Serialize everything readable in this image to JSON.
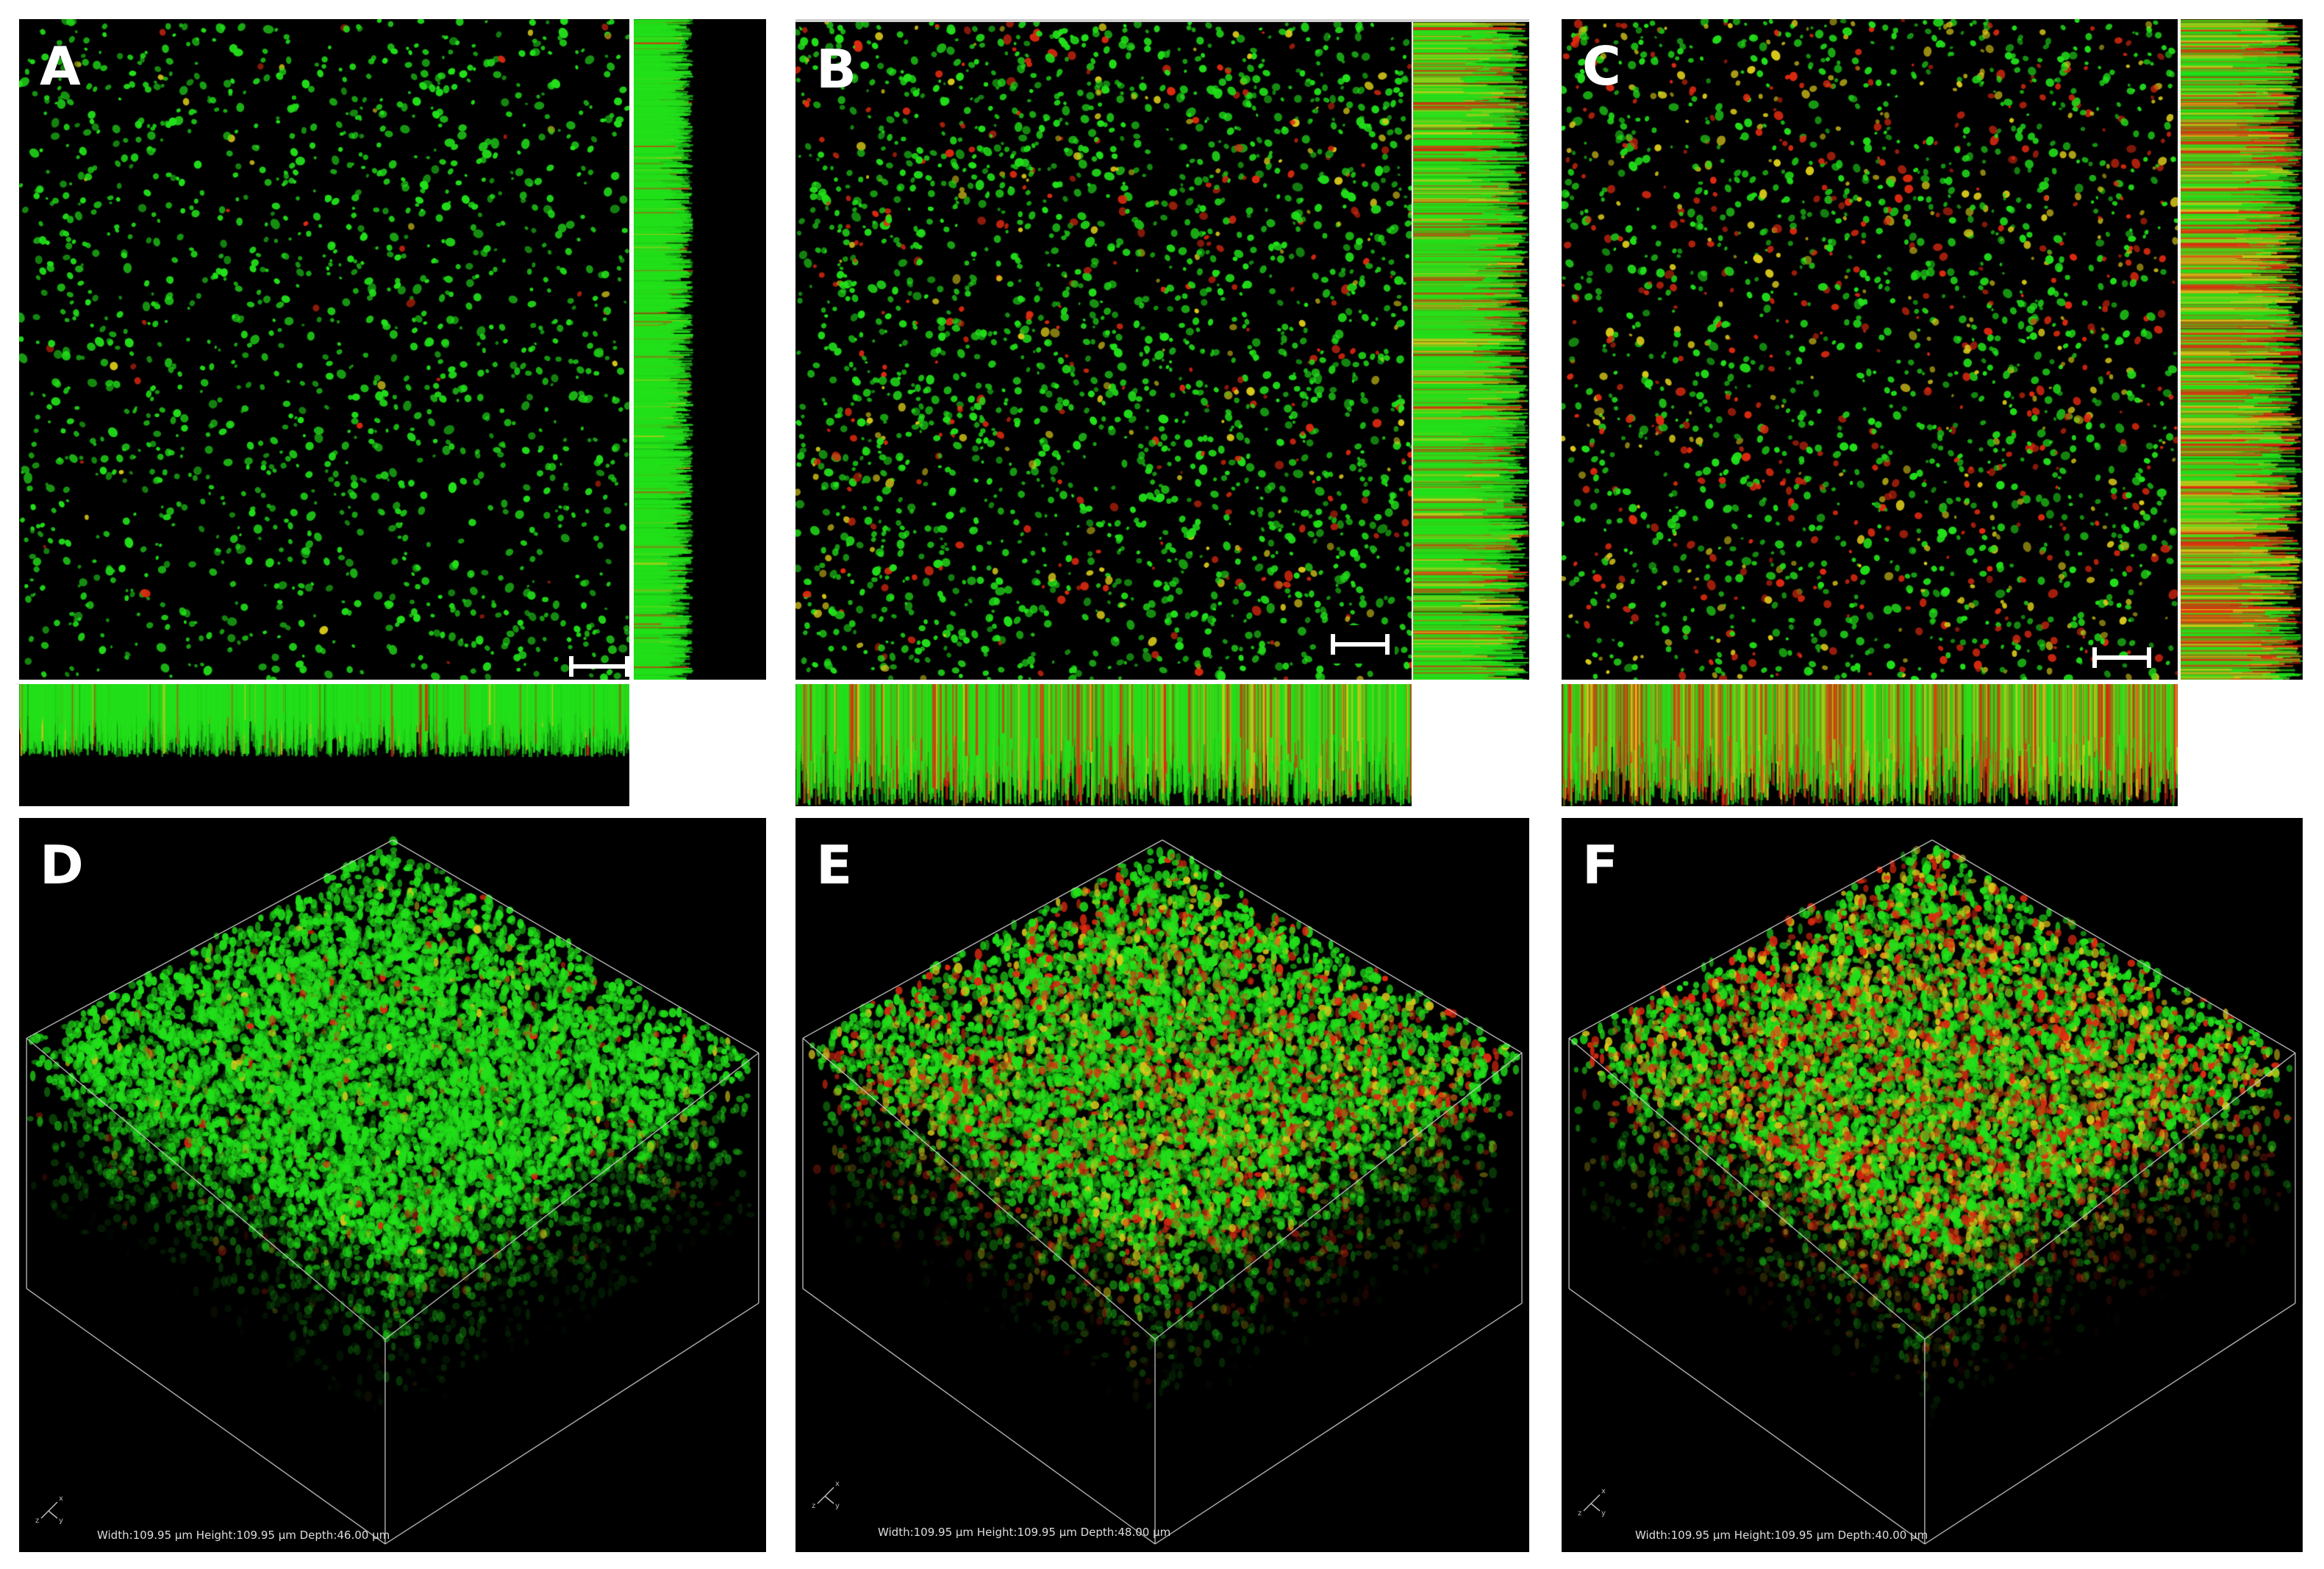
{
  "figure": {
    "panels": [
      {
        "id": "A",
        "label": "A",
        "kind": "ortho",
        "density": 0.55,
        "red_ratio": 0.03
      },
      {
        "id": "B",
        "label": "B",
        "kind": "ortho",
        "density": 0.85,
        "red_ratio": 0.18
      },
      {
        "id": "C",
        "label": "C",
        "kind": "ortho",
        "density": 0.75,
        "red_ratio": 0.35
      },
      {
        "id": "D",
        "label": "D",
        "kind": "volume",
        "dims_text": "Width:109.95 µm Height:109.95 µm Depth:46.00 µm",
        "red_ratio": 0.04
      },
      {
        "id": "E",
        "label": "E",
        "kind": "volume",
        "dims_text": "Width:109.95 µm Height:109.95 µm Depth:48.00 µm",
        "red_ratio": 0.28
      },
      {
        "id": "F",
        "label": "F",
        "kind": "volume",
        "dims_text": "Width:109.95 µm Height:109.95 µm Depth:40.00 µm",
        "red_ratio": 0.4
      }
    ],
    "colors": {
      "green": "#22e01a",
      "red": "#e02a10",
      "yellow": "#d8c81a",
      "background": "#000000",
      "frame": "#d0d0d0"
    },
    "axis_icon": {
      "x": "x",
      "y": "y",
      "z": "z"
    }
  }
}
